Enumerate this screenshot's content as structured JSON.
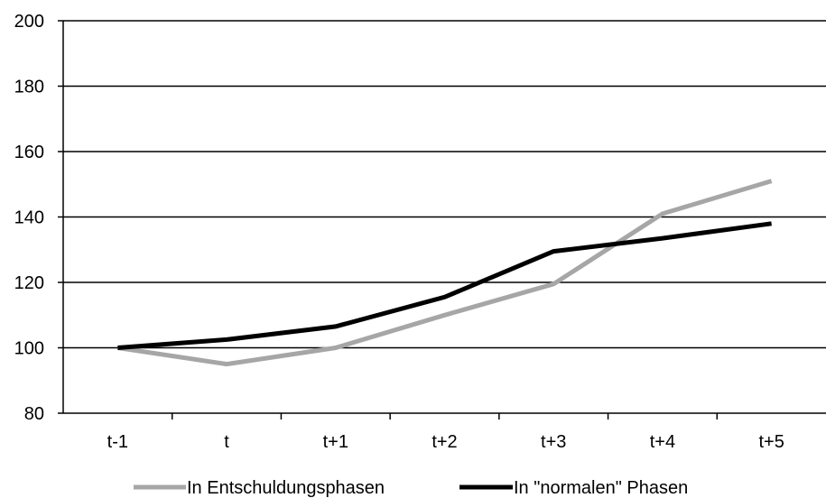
{
  "chart_data": {
    "type": "line",
    "categories": [
      "t-1",
      "t",
      "t+1",
      "t+2",
      "t+3",
      "t+4",
      "t+5"
    ],
    "series": [
      {
        "name": "In Entschuldungsphasen",
        "values": [
          100,
          95,
          100,
          110,
          119.5,
          141,
          151
        ],
        "color": "#a6a6a6"
      },
      {
        "name": "In \"normalen\" Phasen",
        "values": [
          100,
          102.5,
          106.5,
          115.5,
          129.5,
          133.5,
          138
        ],
        "color": "#000000"
      }
    ],
    "ylim": [
      80,
      200
    ],
    "yticks": [
      80,
      100,
      120,
      140,
      160,
      180,
      200
    ],
    "grid": true,
    "legend": "bottom",
    "title": "",
    "xlabel": "",
    "ylabel": ""
  }
}
